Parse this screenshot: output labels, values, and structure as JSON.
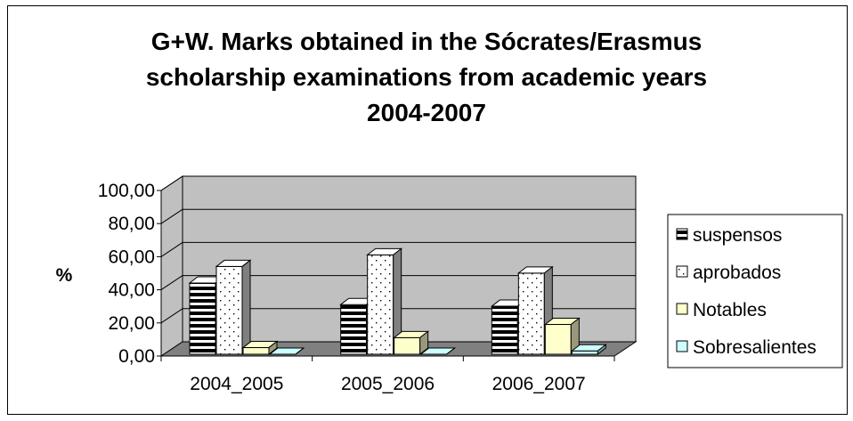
{
  "chart_data": {
    "type": "bar",
    "title_lines": [
      "G+W. Marks obtained in the Sócrates/Erasmus",
      "scholarship examinations from academic years",
      "2004-2007"
    ],
    "ylabel": "%",
    "ylim": [
      0,
      100
    ],
    "ytick_labels": [
      "0,00",
      "20,00",
      "40,00",
      "60,00",
      "80,00",
      "100,00"
    ],
    "categories": [
      "2004_2005",
      "2005_2006",
      "2006_2007"
    ],
    "series": [
      {
        "name": "suspensos",
        "values": [
          43,
          30,
          29
        ],
        "pattern": "horizontal-stripes",
        "color": "#ffffff"
      },
      {
        "name": "aprobados",
        "values": [
          53,
          60,
          49
        ],
        "pattern": "dots",
        "color": "#ffffff"
      },
      {
        "name": "Notables",
        "values": [
          4,
          10,
          18
        ],
        "pattern": "solid",
        "color": "#ffffcc"
      },
      {
        "name": "Sobresalientes",
        "values": [
          0,
          0,
          2
        ],
        "pattern": "solid",
        "color": "#ccffff"
      }
    ],
    "grid": true,
    "legend_position": "right",
    "wall_color": "#c0c0c0",
    "floor_color": "#808080"
  }
}
